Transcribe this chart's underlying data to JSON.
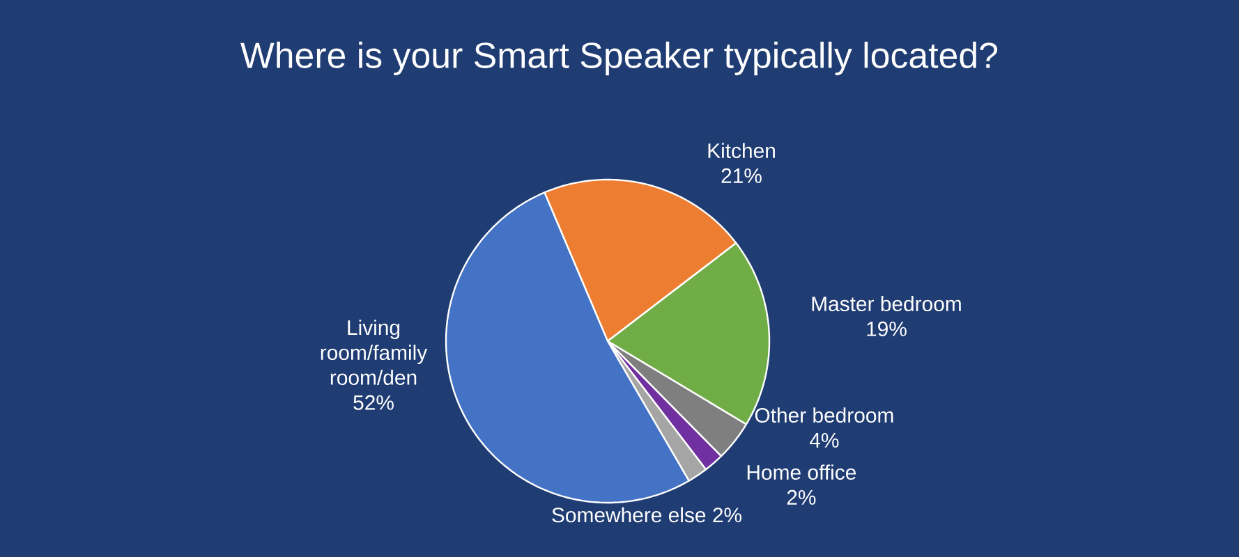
{
  "chart_data": {
    "type": "pie",
    "title": "Where is your Smart Speaker typically located?",
    "categories": [
      "Kitchen",
      "Master bedroom",
      "Other bedroom",
      "Home office",
      "Somewhere else",
      "Living room/family room/den"
    ],
    "values": [
      21,
      19,
      4,
      2,
      2,
      52
    ],
    "value_labels": [
      "21%",
      "19%",
      "4%",
      "2%",
      "2%",
      "52%"
    ],
    "colors": [
      "#ed7d31",
      "#70ad47",
      "#7f7f7f",
      "#7030a0",
      "#a5a5a5",
      "#4472c4"
    ]
  }
}
